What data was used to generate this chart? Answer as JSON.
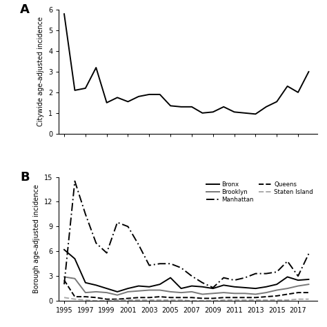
{
  "years": [
    1995,
    1996,
    1997,
    1998,
    1999,
    2000,
    2001,
    2002,
    2003,
    2004,
    2005,
    2006,
    2007,
    2008,
    2009,
    2010,
    2011,
    2012,
    2013,
    2014,
    2015,
    2016,
    2017,
    2018
  ],
  "citywide": [
    5.8,
    2.1,
    2.2,
    3.2,
    1.5,
    1.75,
    1.55,
    1.8,
    1.9,
    1.9,
    1.35,
    1.3,
    1.3,
    1.0,
    1.05,
    1.3,
    1.05,
    1.0,
    0.95,
    1.3,
    1.55,
    2.3,
    2.0,
    3.0
  ],
  "bronx": [
    6.2,
    5.1,
    2.2,
    1.9,
    1.5,
    1.1,
    1.5,
    1.8,
    1.7,
    2.0,
    2.8,
    1.5,
    1.8,
    1.7,
    1.5,
    1.9,
    1.7,
    1.6,
    1.5,
    1.7,
    2.0,
    2.9,
    2.5,
    2.6
  ],
  "brooklyn": [
    2.9,
    2.7,
    1.0,
    1.1,
    1.0,
    0.7,
    1.1,
    1.2,
    1.3,
    1.3,
    1.1,
    1.0,
    1.1,
    0.8,
    0.9,
    1.0,
    0.9,
    0.9,
    0.8,
    1.0,
    1.3,
    1.5,
    1.8,
    2.0
  ],
  "manhattan": [
    2.0,
    14.5,
    10.5,
    7.0,
    5.8,
    9.5,
    9.0,
    6.8,
    4.3,
    4.5,
    4.5,
    4.0,
    3.0,
    2.2,
    1.6,
    2.8,
    2.5,
    2.8,
    3.3,
    3.3,
    3.5,
    4.8,
    3.0,
    5.7
  ],
  "queens": [
    2.5,
    0.5,
    0.5,
    0.4,
    0.2,
    0.2,
    0.3,
    0.4,
    0.4,
    0.5,
    0.4,
    0.4,
    0.4,
    0.3,
    0.3,
    0.4,
    0.4,
    0.4,
    0.4,
    0.5,
    0.6,
    0.8,
    1.0,
    1.0
  ],
  "staten_island": [
    0.4,
    0.2,
    0.1,
    0.0,
    0.0,
    0.1,
    0.1,
    0.1,
    0.1,
    0.1,
    0.1,
    0.1,
    0.0,
    0.0,
    0.0,
    0.1,
    0.1,
    0.1,
    0.1,
    0.1,
    0.1,
    0.1,
    0.2,
    0.2
  ],
  "xticks": [
    1995,
    1997,
    1999,
    2001,
    2003,
    2005,
    2007,
    2009,
    2011,
    2013,
    2015,
    2017
  ],
  "panel_A_ylabel": "Citywide age-adjusted incidence",
  "panel_B_ylabel": "Borough age-adjusted incidence",
  "panel_A_ylim": [
    0,
    6
  ],
  "panel_B_ylim": [
    0,
    15
  ],
  "panel_A_yticks": [
    0,
    1,
    2,
    3,
    4,
    5,
    6
  ],
  "panel_B_yticks": [
    0,
    3,
    6,
    9,
    12,
    15
  ],
  "xlim": [
    1994.5,
    2018.8
  ],
  "line_color_black": "#000000",
  "line_color_gray": "#777777",
  "line_color_light_gray": "#aaaaaa",
  "tick_fontsize": 7,
  "label_fontsize": 7,
  "panel_label_fontsize": 13,
  "line_width": 1.4
}
